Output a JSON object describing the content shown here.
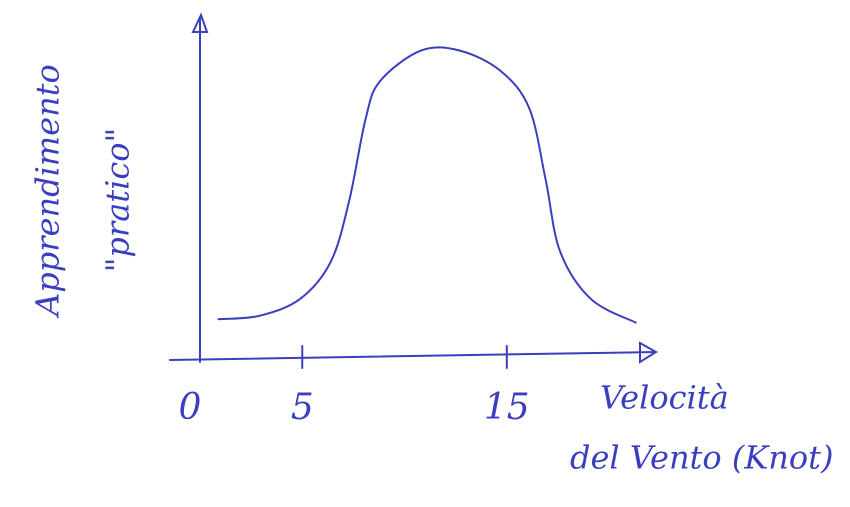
{
  "chart_data": {
    "type": "line",
    "ylabel": [
      "Apprendimento",
      "\"pratico\""
    ],
    "xlabel": [
      "Velocità",
      "del Vento (Knot)"
    ],
    "x": [
      0.9,
      2.9,
      4.9,
      6.4,
      7.3,
      8.1,
      8.8,
      10.8,
      12.7,
      14.7,
      16.1,
      16.9,
      17.6,
      19.1,
      21.3
    ],
    "series": [
      {
        "color": "#3a3fc0",
        "values": [
          1.2,
          1.3,
          1.8,
          2.9,
          4.7,
          7.1,
          8.2,
          9.1,
          9.1,
          8.5,
          7.4,
          5.3,
          3.2,
          1.8,
          1.1
        ]
      }
    ],
    "xlim": [
      0,
      22
    ],
    "ylim": [
      0,
      10
    ],
    "xticks": [
      0,
      5,
      15
    ]
  }
}
